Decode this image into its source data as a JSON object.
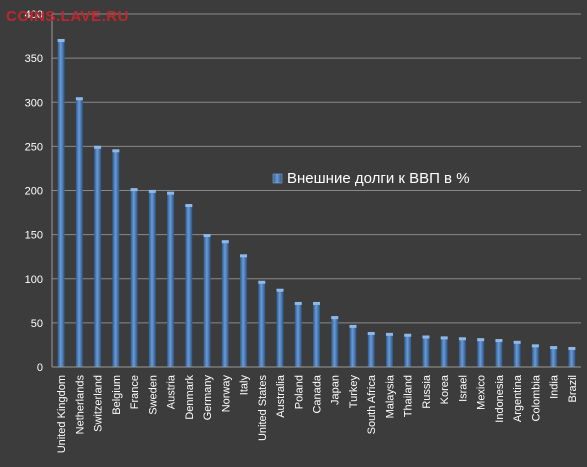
{
  "watermark": "COINS.LAVE.RU",
  "chart_data": {
    "type": "bar",
    "title": "",
    "xlabel": "",
    "ylabel": "",
    "ylim": [
      0,
      400
    ],
    "yticks": [
      0,
      50,
      100,
      150,
      200,
      250,
      300,
      350,
      400
    ],
    "grid": true,
    "legend_position": "middle-right",
    "categories": [
      "United Kingdom",
      "Netherlands",
      "Switzerland",
      "Belgium",
      "France",
      "Sweden",
      "Austria",
      "Denmark",
      "Germany",
      "Norway",
      "Italy",
      "United States",
      "Australia",
      "Poland",
      "Canada",
      "Japan",
      "Turkey",
      "South Africa",
      "Malaysia",
      "Thailand",
      "Russia",
      "Korea",
      "Israel",
      "Mexico",
      "Indonesia",
      "Argentina",
      "Colombia",
      "India",
      "Brazil"
    ],
    "series": [
      {
        "name": "Внешние долги к ВВП в %",
        "color": "#4f81bd",
        "values": [
          370,
          304,
          249,
          245,
          201,
          199,
          197,
          183,
          149,
          142,
          126,
          96,
          87,
          72,
          72,
          56,
          46,
          38,
          37,
          36,
          34,
          33,
          32,
          31,
          30,
          28,
          24,
          22,
          21
        ]
      }
    ]
  }
}
